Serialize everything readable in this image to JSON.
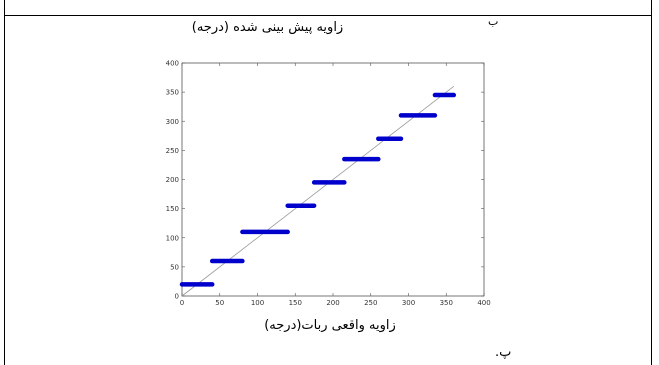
{
  "header": {
    "mark": "ب"
  },
  "panel": {
    "label": "پ."
  },
  "chart_data": {
    "type": "line",
    "title": "زاویه پیش بینی شده (درجه)",
    "xlabel": "زاویه واقعی ربات(درجه)",
    "ylabel": "",
    "xlim": [
      0,
      400
    ],
    "ylim": [
      0,
      400
    ],
    "xticks": [
      0,
      50,
      100,
      150,
      200,
      250,
      300,
      350,
      400
    ],
    "yticks": [
      0,
      50,
      100,
      150,
      200,
      250,
      300,
      350,
      400
    ],
    "grid": false,
    "series_color": "#0000cc",
    "reference_line_color": "#999999",
    "series": [
      {
        "segments": [
          {
            "x": [
              0,
              40
            ],
            "y": 20
          },
          {
            "x": [
              40,
              80
            ],
            "y": 60
          },
          {
            "x": [
              80,
              140
            ],
            "y": 110
          },
          {
            "x": [
              140,
              175
            ],
            "y": 155
          },
          {
            "x": [
              175,
              215
            ],
            "y": 195
          },
          {
            "x": [
              215,
              260
            ],
            "y": 235
          },
          {
            "x": [
              260,
              290
            ],
            "y": 270
          },
          {
            "x": [
              290,
              335
            ],
            "y": 310
          },
          {
            "x": [
              335,
              360
            ],
            "y": 345
          }
        ]
      }
    ]
  }
}
